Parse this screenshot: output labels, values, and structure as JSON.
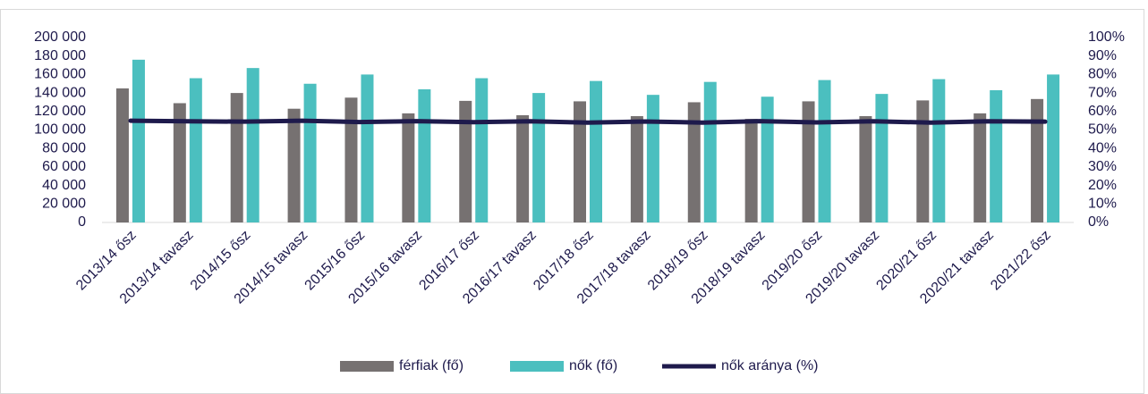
{
  "chart_data": {
    "type": "bar",
    "categories": [
      "2013/14 ősz",
      "2013/14 tavasz",
      "2014/15 ősz",
      "2014/15 tavasz",
      "2015/16 ősz",
      "2015/16 tavasz",
      "2016/17 ősz",
      "2016/17 tavasz",
      "2017/18 ősz",
      "2017/18 tavasz",
      "2018/19 ősz",
      "2018/19 tavasz",
      "2019/20 ősz",
      "2019/20 tavasz",
      "2020/21 ősz",
      "2020/21 tavasz",
      "2021/22 ősz"
    ],
    "series": [
      {
        "name": "férfiak (fő)",
        "type": "bar",
        "color": "#767171",
        "values": [
          145000,
          129000,
          140000,
          123000,
          135000,
          118000,
          131500,
          116000,
          131000,
          115000,
          130000,
          112000,
          131000,
          115000,
          132000,
          118000,
          133500
        ]
      },
      {
        "name": "nők (fő)",
        "type": "bar",
        "color": "#4bbfbf",
        "values": [
          176000,
          156000,
          167000,
          150000,
          160000,
          144000,
          156000,
          140000,
          153000,
          138000,
          152000,
          136000,
          154000,
          139000,
          155000,
          143000,
          160000
        ]
      },
      {
        "name": "nők aránya (%)",
        "type": "line",
        "axis": "y2",
        "color": "#1e1a4c",
        "values": [
          55,
          54.7,
          54.5,
          55,
          54.3,
          54.8,
          54.2,
          54.7,
          54,
          54.6,
          54,
          54.8,
          54.1,
          54.7,
          54,
          54.7,
          54.5
        ]
      }
    ],
    "ylim": [
      0,
      200000
    ],
    "yticks": [
      0,
      {
        "value": 20000,
        "label": "20 000"
      },
      {
        "value": 40000,
        "label": "40 000"
      },
      {
        "value": 60000,
        "label": "60 000"
      },
      {
        "value": 80000,
        "label": "80 000"
      },
      {
        "value": 100000,
        "label": "100 000"
      },
      {
        "value": 120000,
        "label": "120 000"
      },
      {
        "value": 140000,
        "label": "140 000"
      },
      {
        "value": 160000,
        "label": "160 000"
      },
      {
        "value": 180000,
        "label": "180 000"
      },
      {
        "value": 200000,
        "label": "200 000"
      }
    ],
    "y2lim": [
      0,
      100
    ],
    "y2ticks": [
      {
        "value": 0,
        "label": "0%"
      },
      {
        "value": 10,
        "label": "10%"
      },
      {
        "value": 20,
        "label": "20%"
      },
      {
        "value": 30,
        "label": "30%"
      },
      {
        "value": 40,
        "label": "40%"
      },
      {
        "value": 50,
        "label": "50%"
      },
      {
        "value": 60,
        "label": "60%"
      },
      {
        "value": 70,
        "label": "70%"
      },
      {
        "value": 80,
        "label": "80%"
      },
      {
        "value": 90,
        "label": "90%"
      },
      {
        "value": 100,
        "label": "100%"
      }
    ],
    "grid": false,
    "legend": "bottom"
  }
}
